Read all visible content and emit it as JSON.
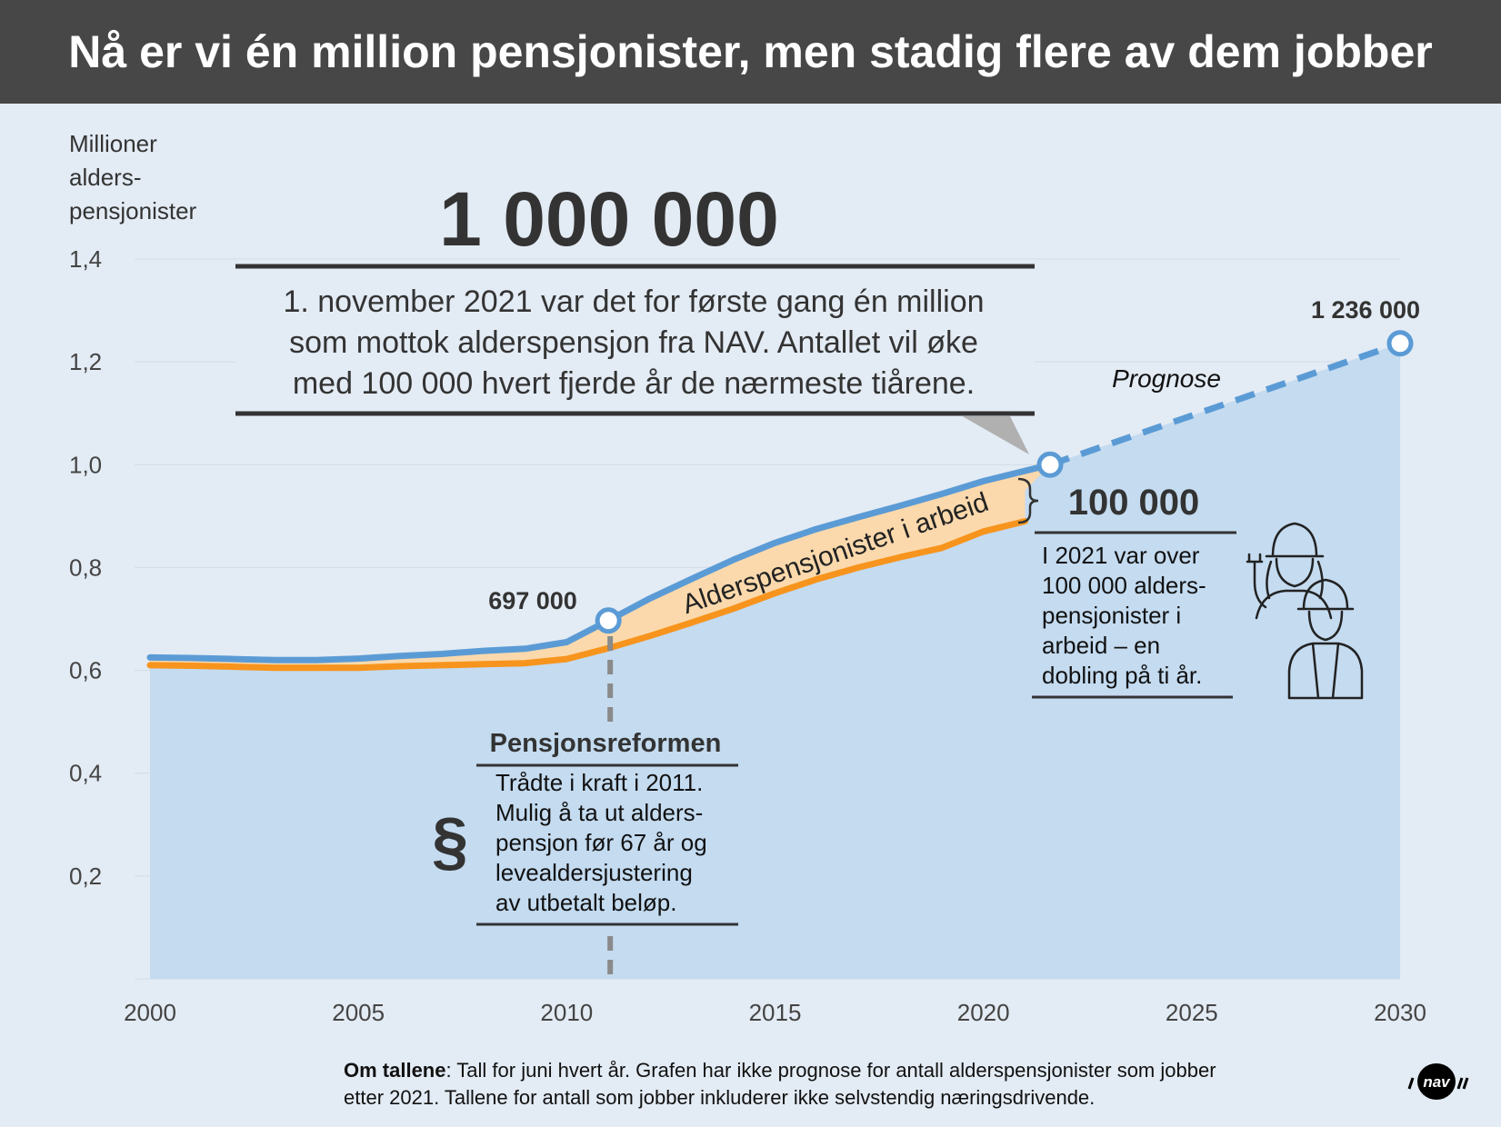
{
  "title": "Nå er vi én million pensjonister, men stadig flere av dem jobber",
  "colors": {
    "header_bg": "#474747",
    "background": "#e3ebf4",
    "total_area": "#c4dbf0",
    "total_line": "#5b9bd5",
    "working_area": "#fbd9ac",
    "working_line": "#f7941d",
    "text_dark": "#333333"
  },
  "chart_data": {
    "type": "area",
    "ylabel": "Millioner\nalders-\npensjonister",
    "y_ticks": [
      "0,2",
      "0,4",
      "0,6",
      "0,8",
      "1,0",
      "1,2",
      "1,4"
    ],
    "x_ticks": [
      "2000",
      "2005",
      "2010",
      "2015",
      "2020",
      "2025",
      "2030"
    ],
    "xlim": [
      2000,
      2030.5
    ],
    "ylim": [
      0,
      1.4
    ],
    "grid": true,
    "series": [
      {
        "name": "",
        "style": "solid",
        "points": [
          [
            2000,
            0.625
          ],
          [
            2001,
            0.624
          ],
          [
            2002,
            0.622
          ],
          [
            2003,
            0.62
          ],
          [
            2004,
            0.62
          ],
          [
            2005,
            0.623
          ],
          [
            2006,
            0.628
          ],
          [
            2007,
            0.632
          ],
          [
            2008,
            0.638
          ],
          [
            2009,
            0.642
          ],
          [
            2010,
            0.655
          ],
          [
            2011,
            0.697
          ],
          [
            2012,
            0.74
          ],
          [
            2013,
            0.778
          ],
          [
            2014,
            0.815
          ],
          [
            2015,
            0.848
          ],
          [
            2016,
            0.875
          ],
          [
            2017,
            0.898
          ],
          [
            2018,
            0.92
          ],
          [
            2019,
            0.943
          ],
          [
            2020,
            0.968
          ],
          [
            2021.6,
            1.0
          ]
        ]
      },
      {
        "name": "Prognose",
        "style": "dashed",
        "points": [
          [
            2021.6,
            1.0
          ],
          [
            2030,
            1.236
          ]
        ]
      },
      {
        "name": "Alderspensjonister i arbeid",
        "style": "solid",
        "points": [
          [
            2000,
            0.61
          ],
          [
            2001,
            0.609
          ],
          [
            2002,
            0.607
          ],
          [
            2003,
            0.605
          ],
          [
            2004,
            0.605
          ],
          [
            2005,
            0.605
          ],
          [
            2006,
            0.608
          ],
          [
            2007,
            0.61
          ],
          [
            2008,
            0.612
          ],
          [
            2009,
            0.614
          ],
          [
            2010,
            0.622
          ],
          [
            2011,
            0.643
          ],
          [
            2012,
            0.667
          ],
          [
            2013,
            0.693
          ],
          [
            2014,
            0.72
          ],
          [
            2015,
            0.75
          ],
          [
            2016,
            0.777
          ],
          [
            2017,
            0.8
          ],
          [
            2018,
            0.82
          ],
          [
            2019,
            0.838
          ],
          [
            2020,
            0.87
          ],
          [
            2021,
            0.89
          ]
        ]
      }
    ],
    "annotations": {
      "million_value": "1 000 000",
      "million_text": [
        "1. november 2021 var det for første gang én million",
        "som mottok alderspensjon fra NAV. Antallet vil øke",
        "med 100 000 hvert fjerde år de nærmeste tiårene."
      ],
      "value_2011": "697 000",
      "value_2030": "1 236 000",
      "prognosis_label": "Prognose",
      "working_label": "Alderspensjonister i arbeid",
      "working_value": "100 000",
      "working_text": [
        "I 2021 var over",
        "100 000 alders-",
        "pensjonister i",
        "arbeid – en",
        "dobling på ti år."
      ],
      "reform_title": "Pensjonsreformen",
      "reform_symbol": "§",
      "reform_text": [
        "Trådte i kraft i 2011.",
        "Mulig å ta ut alders-",
        "pensjon før 67 år og",
        "levealdersjustering",
        "av utbetalt beløp."
      ],
      "reform_year": 2011
    }
  },
  "footnote": {
    "bold": "Om tallene",
    "text": ": Tall for juni hvert år. Grafen har ikke prognose for antall alderspensjonister som jobber etter 2021. Tallene for antall som jobber inkluderer ikke selvstendig næringsdrivende."
  },
  "logo": {
    "text": "nav",
    "icon": "nav-logo-icon"
  },
  "workers_icon": "workers-icon"
}
